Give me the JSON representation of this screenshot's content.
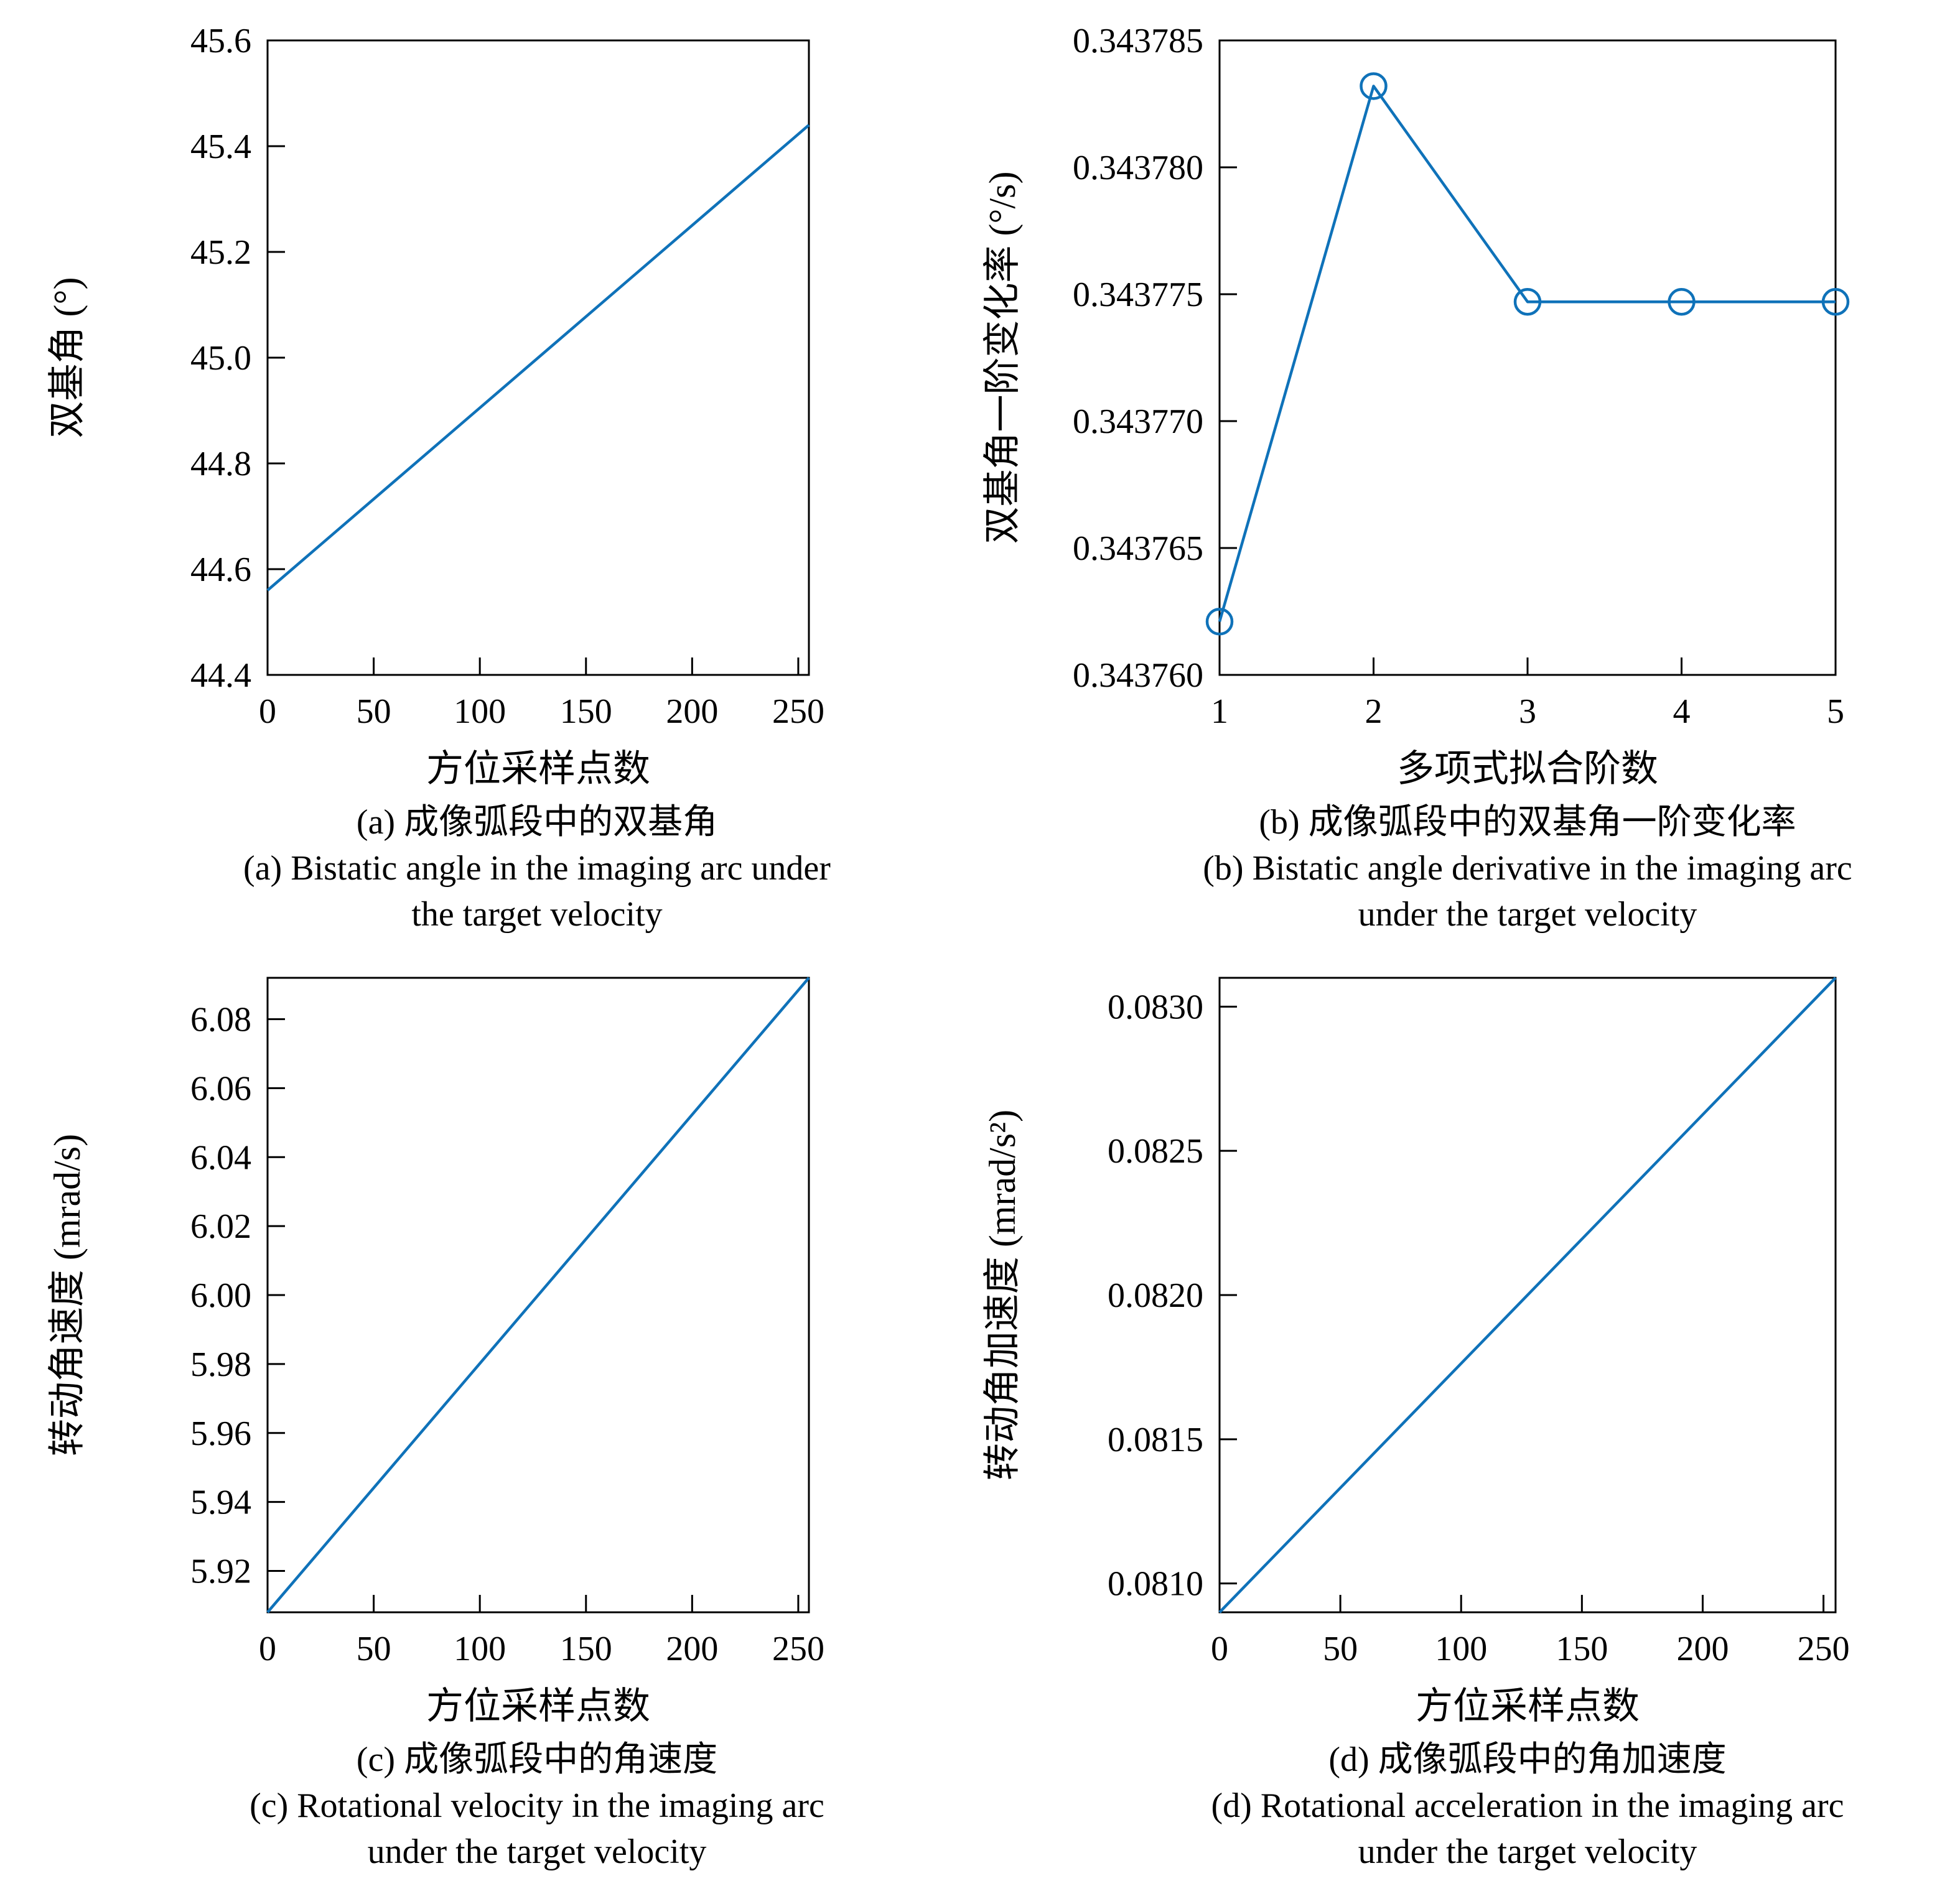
{
  "page": {
    "background": "#ffffff",
    "text_color": "#000000",
    "axis_color": "#000000"
  },
  "chart_data": [
    {
      "id": "a",
      "type": "line",
      "x": [
        0,
        255
      ],
      "y": [
        44.56,
        45.44
      ],
      "xlim": [
        0,
        255
      ],
      "ylim": [
        44.4,
        45.6
      ],
      "xticks": [
        {
          "v": 0,
          "label": "0"
        },
        {
          "v": 50,
          "label": "50"
        },
        {
          "v": 100,
          "label": "100"
        },
        {
          "v": 150,
          "label": "150"
        },
        {
          "v": 200,
          "label": "200"
        },
        {
          "v": 250,
          "label": "250"
        }
      ],
      "yticks": [
        {
          "v": 44.4,
          "label": "44.4"
        },
        {
          "v": 44.6,
          "label": "44.6"
        },
        {
          "v": 44.8,
          "label": "44.8"
        },
        {
          "v": 45.0,
          "label": "45.0"
        },
        {
          "v": 45.2,
          "label": "45.2"
        },
        {
          "v": 45.4,
          "label": "45.4"
        },
        {
          "v": 45.6,
          "label": "45.6"
        }
      ],
      "xlabel": "方位采样点数",
      "ylabel": "双基角 (°)",
      "marker": "none",
      "line_color": "#0f72b9",
      "grid": false,
      "legend": "none",
      "caption_zh": "(a) 成像弧段中的双基角",
      "caption_en_line1": "(a) Bistatic angle in the imaging arc under",
      "caption_en_line2": "the target velocity"
    },
    {
      "id": "b",
      "type": "line",
      "x": [
        1,
        2,
        3,
        4,
        5
      ],
      "y": [
        0.3437621,
        0.3437832,
        0.3437747,
        0.3437747,
        0.3437747
      ],
      "xlim": [
        1,
        5
      ],
      "ylim": [
        0.34376,
        0.343785
      ],
      "xticks": [
        {
          "v": 1,
          "label": "1"
        },
        {
          "v": 2,
          "label": "2"
        },
        {
          "v": 3,
          "label": "3"
        },
        {
          "v": 4,
          "label": "4"
        },
        {
          "v": 5,
          "label": "5"
        }
      ],
      "yticks": [
        {
          "v": 0.34376,
          "label": "0.343760"
        },
        {
          "v": 0.343765,
          "label": "0.343765"
        },
        {
          "v": 0.34377,
          "label": "0.343770"
        },
        {
          "v": 0.343775,
          "label": "0.343775"
        },
        {
          "v": 0.34378,
          "label": "0.343780"
        },
        {
          "v": 0.343785,
          "label": "0.343785"
        }
      ],
      "xlabel": "多项式拟合阶数",
      "ylabel": "双基角一阶变化率 (°/s)",
      "marker": "circle",
      "line_color": "#0f72b9",
      "grid": false,
      "legend": "none",
      "caption_zh": "(b) 成像弧段中的双基角一阶变化率",
      "caption_en_line1": "(b) Bistatic angle derivative in the imaging arc",
      "caption_en_line2": "under the target velocity"
    },
    {
      "id": "c",
      "type": "line",
      "x": [
        0,
        255
      ],
      "y": [
        5.908,
        6.092
      ],
      "xlim": [
        0,
        255
      ],
      "ylim": [
        5.908,
        6.092
      ],
      "xticks": [
        {
          "v": 0,
          "label": "0"
        },
        {
          "v": 50,
          "label": "50"
        },
        {
          "v": 100,
          "label": "100"
        },
        {
          "v": 150,
          "label": "150"
        },
        {
          "v": 200,
          "label": "200"
        },
        {
          "v": 250,
          "label": "250"
        }
      ],
      "yticks": [
        {
          "v": 5.92,
          "label": "5.92"
        },
        {
          "v": 5.94,
          "label": "5.94"
        },
        {
          "v": 5.96,
          "label": "5.96"
        },
        {
          "v": 5.98,
          "label": "5.98"
        },
        {
          "v": 6.0,
          "label": "6.00"
        },
        {
          "v": 6.02,
          "label": "6.02"
        },
        {
          "v": 6.04,
          "label": "6.04"
        },
        {
          "v": 6.06,
          "label": "6.06"
        },
        {
          "v": 6.08,
          "label": "6.08"
        }
      ],
      "xlabel": "方位采样点数",
      "ylabel": "转动角速度 (mrad/s)",
      "marker": "none",
      "line_color": "#0f72b9",
      "grid": false,
      "legend": "none",
      "caption_zh": "(c) 成像弧段中的角速度",
      "caption_en_line1": "(c) Rotational velocity in the imaging arc",
      "caption_en_line2": "under the target velocity"
    },
    {
      "id": "d",
      "type": "line",
      "x": [
        0,
        255
      ],
      "y": [
        0.0809,
        0.0831
      ],
      "xlim": [
        0,
        255
      ],
      "ylim": [
        0.0809,
        0.0831
      ],
      "xticks": [
        {
          "v": 0,
          "label": "0"
        },
        {
          "v": 50,
          "label": "50"
        },
        {
          "v": 100,
          "label": "100"
        },
        {
          "v": 150,
          "label": "150"
        },
        {
          "v": 200,
          "label": "200"
        },
        {
          "v": 250,
          "label": "250"
        }
      ],
      "yticks": [
        {
          "v": 0.081,
          "label": "0.0810"
        },
        {
          "v": 0.0815,
          "label": "0.0815"
        },
        {
          "v": 0.082,
          "label": "0.0820"
        },
        {
          "v": 0.0825,
          "label": "0.0825"
        },
        {
          "v": 0.083,
          "label": "0.0830"
        }
      ],
      "xlabel": "方位采样点数",
      "ylabel": "转动角加速度 (mrad/s²)",
      "marker": "none",
      "line_color": "#0f72b9",
      "grid": false,
      "legend": "none",
      "caption_zh": "(d) 成像弧段中的角加速度",
      "caption_en_line1": "(d) Rotational acceleration in the imaging arc",
      "caption_en_line2": "under the target velocity"
    }
  ]
}
